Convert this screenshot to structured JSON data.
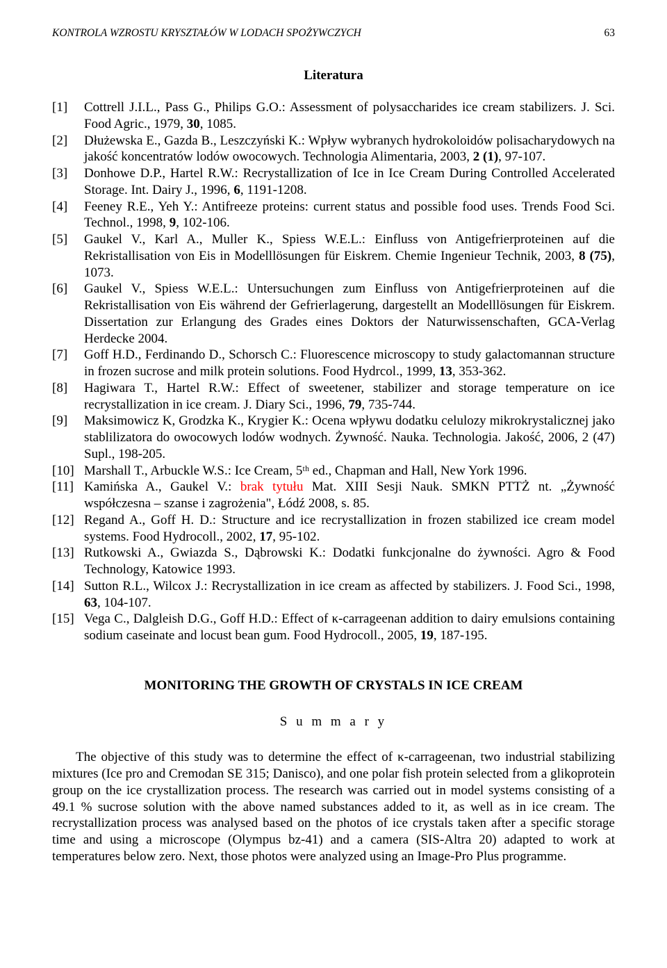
{
  "header": {
    "running_title": "KONTROLA WZROSTU KRYSZTAŁÓW W LODACH SPOŻYWCZYCH",
    "page_number": "63"
  },
  "literature": {
    "heading": "Literatura",
    "items": [
      {
        "n": "[1]",
        "text": "Cottrell J.I.L., Pass G., Philips G.O.: Assessment of polysaccharides ice cream stabilizers. J. Sci. Food Agric., 1979, 30, 1085."
      },
      {
        "n": "[2]",
        "text": "Dłużewska E., Gazda B., Leszczyński K.: Wpływ wybranych hydrokoloidów polisacharydowych na jakość koncentratów lodów owocowych. Technologia Alimentaria, 2003, 2 (1), 97-107."
      },
      {
        "n": "[3]",
        "text": "Donhowe D.P., Hartel R.W.: Recrystallization of Ice in Ice Cream During Controlled Accelerated Storage. Int. Dairy J., 1996, 6, 1191-1208."
      },
      {
        "n": "[4]",
        "text": "Feeney R.E., Yeh Y.: Antifreeze proteins: current status and possible food uses. Trends Food Sci. Technol., 1998, 9, 102-106."
      },
      {
        "n": "[5]",
        "text": "Gaukel V., Karl A., Muller K., Spiess W.E.L.: Einfluss von Antigefrierproteinen auf die Rekristallisation von Eis in Modelllösungen für Eiskrem. Chemie Ingenieur Technik, 2003, 8 (75), 1073."
      },
      {
        "n": "[6]",
        "text": "Gaukel V., Spiess W.E.L.: Untersuchungen zum Einfluss von Antigefrierproteinen auf die Rekristallisation von Eis während der Gefrierlagerung, dargestellt an Modelllösungen für Eiskrem. Dissertation zur Erlangung des Grades eines Doktors der Naturwissenschaften, GCA-Verlag Herdecke 2004."
      },
      {
        "n": "[7]",
        "text": "Goff H.D., Ferdinando D., Schorsch C.: Fluorescence microscopy to study galactomannan structure in frozen sucrose and milk protein solutions. Food Hydrcol., 1999, 13, 353-362."
      },
      {
        "n": "[8]",
        "text": "Hagiwara T., Hartel R.W.: Effect of sweetener, stabilizer and storage temperature on ice recrystallization in ice cream. J. Diary Sci., 1996, 79, 735-744."
      },
      {
        "n": "[9]",
        "text": "Maksimowicz K, Grodzka K., Krygier K.: Ocena wpływu dodatku celulozy mikrokrystalicznej jako stablilizatora do owocowych lodów wodnych. Żywność. Nauka. Technologia. Jakość, 2006, 2 (47) Supl., 198-205."
      },
      {
        "n": "[10]",
        "text": "Marshall T., Arbuckle W.S.: Ice Cream, 5ᵗʰ ed., Chapman and Hall, New York 1996."
      },
      {
        "n": "[11]",
        "pre": "Kamińska A., Gaukel V.: ",
        "red": "brak tytułu",
        "post": " Mat. XIII Sesji Nauk. SMKN PTTŻ nt. „Żywność współczesna – szanse i zagrożenia\", Łódź 2008, s. 85."
      },
      {
        "n": "[12]",
        "text": "Regand A., Goff H. D.: Structure and ice recrystallization in frozen stabilized ice cream model systems. Food Hydrocoll., 2002, 17, 95-102."
      },
      {
        "n": "[13]",
        "text": "Rutkowski A., Gwiazda S., Dąbrowski K.: Dodatki funkcjonalne do żywności. Agro & Food Technology, Katowice 1993."
      },
      {
        "n": "[14]",
        "text": "Sutton R.L., Wilcox J.: Recrystallization in ice cream as affected by stabilizers. J. Food Sci., 1998, 63, 104-107."
      },
      {
        "n": "[15]",
        "text": "Vega C., Dalgleish D.G., Goff H.D.: Effect of κ-carrageenan addition to dairy emulsions containing sodium caseinate and locust bean gum. Food Hydrocoll., 2005, 19, 187-195."
      }
    ]
  },
  "abstract": {
    "title": "MONITORING THE GROWTH OF CRYSTALS IN ICE CREAM",
    "summary_label": "S u m m a r y",
    "body": "The objective of this study was to determine the effect of κ-carrageenan, two industrial stabilizing mixtures (Ice pro and Cremodan SE 315; Danisco), and one polar fish protein selected from a glikoprotein group on the ice crystallization process. The research was carried out in model systems consisting of a 49.1 % sucrose solution with the above named substances added to it, as well as in ice cream. The recrystallization process was analysed based on the photos of ice crystals taken after a specific storage time and using a microscope (Olympus bz-41) and a camera (SIS-Altra 20) adapted to work at temperatures below zero. Next, those photos were analyzed using an Image-Pro Plus programme."
  }
}
